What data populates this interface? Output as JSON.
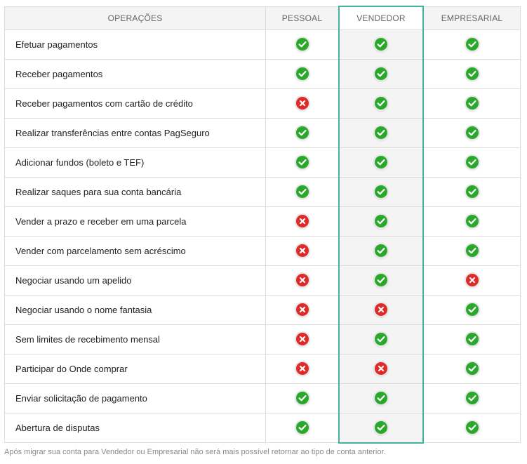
{
  "header": {
    "operations": "OPERAÇÕES",
    "personal": "PESSOAL",
    "seller": "VENDEDOR",
    "business": "EMPRESARIAL"
  },
  "rows": [
    {
      "label": "Efetuar pagamentos",
      "pessoal": true,
      "vendedor": true,
      "empresarial": true
    },
    {
      "label": "Receber pagamentos",
      "pessoal": true,
      "vendedor": true,
      "empresarial": true
    },
    {
      "label": "Receber pagamentos com cartão de crédito",
      "pessoal": false,
      "vendedor": true,
      "empresarial": true
    },
    {
      "label": "Realizar transferências entre contas PagSeguro",
      "pessoal": true,
      "vendedor": true,
      "empresarial": true
    },
    {
      "label": "Adicionar fundos (boleto e TEF)",
      "pessoal": true,
      "vendedor": true,
      "empresarial": true
    },
    {
      "label": "Realizar saques para sua conta bancária",
      "pessoal": true,
      "vendedor": true,
      "empresarial": true
    },
    {
      "label": "Vender a prazo e receber em uma parcela",
      "pessoal": false,
      "vendedor": true,
      "empresarial": true
    },
    {
      "label": "Vender com parcelamento sem acréscimo",
      "pessoal": false,
      "vendedor": true,
      "empresarial": true
    },
    {
      "label": "Negociar usando um apelido",
      "pessoal": false,
      "vendedor": true,
      "empresarial": false
    },
    {
      "label": "Negociar usando o nome fantasia",
      "pessoal": false,
      "vendedor": false,
      "empresarial": true
    },
    {
      "label": "Sem limites de recebimento mensal",
      "pessoal": false,
      "vendedor": true,
      "empresarial": true
    },
    {
      "label": "Participar do Onde comprar",
      "pessoal": false,
      "vendedor": false,
      "empresarial": true
    },
    {
      "label": "Enviar solicitação de pagamento",
      "pessoal": true,
      "vendedor": true,
      "empresarial": true
    },
    {
      "label": "Abertura de disputas",
      "pessoal": true,
      "vendedor": true,
      "empresarial": true
    }
  ],
  "icons": {
    "yes": "check-icon",
    "no": "cross-icon"
  },
  "colors": {
    "yes": "#2aa82c",
    "no": "#e02a2a",
    "highlight_border": "#3fb5a0"
  },
  "footnote": "Após migrar sua conta para Vendedor ou Empresarial não será mais possível retornar ao tipo de conta anterior."
}
